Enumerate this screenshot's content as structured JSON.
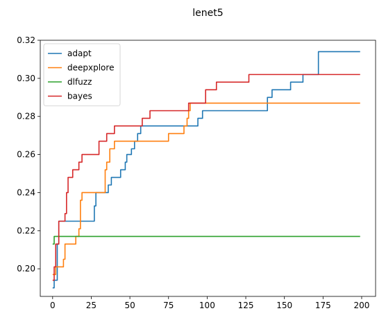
{
  "chart_data": {
    "type": "line",
    "title": "lenet5",
    "xlabel": "",
    "ylabel": "",
    "xlim": [
      -8,
      209
    ],
    "ylim": [
      0.1855,
      0.32
    ],
    "xticks": [
      0,
      25,
      50,
      75,
      100,
      125,
      150,
      175,
      200
    ],
    "yticks": [
      0.2,
      0.22,
      0.24,
      0.26,
      0.28,
      0.3,
      0.32
    ],
    "ytick_labels": [
      "0.20",
      "0.22",
      "0.24",
      "0.26",
      "0.28",
      "0.30",
      "0.32"
    ],
    "grid": false,
    "legend_position": "top-left",
    "series": [
      {
        "name": "adapt",
        "color": "#1f77b4",
        "step": true,
        "points": [
          [
            0,
            0.19
          ],
          [
            1,
            0.194
          ],
          [
            3,
            0.213
          ],
          [
            4,
            0.225
          ],
          [
            27,
            0.233
          ],
          [
            28,
            0.24
          ],
          [
            36,
            0.244
          ],
          [
            38,
            0.248
          ],
          [
            44,
            0.252
          ],
          [
            47,
            0.256
          ],
          [
            48,
            0.26
          ],
          [
            51,
            0.263
          ],
          [
            53,
            0.267
          ],
          [
            55,
            0.271
          ],
          [
            57,
            0.275
          ],
          [
            94,
            0.279
          ],
          [
            97,
            0.283
          ],
          [
            139,
            0.29
          ],
          [
            142,
            0.294
          ],
          [
            154,
            0.298
          ],
          [
            162,
            0.302
          ],
          [
            172,
            0.314
          ],
          [
            199,
            0.314
          ]
        ]
      },
      {
        "name": "deepxplore",
        "color": "#ff7f0e",
        "step": true,
        "points": [
          [
            0,
            0.197
          ],
          [
            2,
            0.201
          ],
          [
            7,
            0.205
          ],
          [
            8,
            0.213
          ],
          [
            15,
            0.217
          ],
          [
            17,
            0.221
          ],
          [
            18,
            0.236
          ],
          [
            19,
            0.24
          ],
          [
            34,
            0.252
          ],
          [
            35,
            0.256
          ],
          [
            37,
            0.263
          ],
          [
            40,
            0.267
          ],
          [
            75,
            0.271
          ],
          [
            85,
            0.275
          ],
          [
            87,
            0.279
          ],
          [
            88,
            0.283
          ],
          [
            89,
            0.287
          ],
          [
            199,
            0.287
          ]
        ]
      },
      {
        "name": "dlfuzz",
        "color": "#2ca02c",
        "step": true,
        "points": [
          [
            0,
            0.213
          ],
          [
            1,
            0.217
          ],
          [
            199,
            0.217
          ]
        ]
      },
      {
        "name": "bayes",
        "color": "#d62728",
        "step": true,
        "points": [
          [
            0,
            0.194
          ],
          [
            1,
            0.201
          ],
          [
            2,
            0.213
          ],
          [
            4,
            0.225
          ],
          [
            8,
            0.229
          ],
          [
            9,
            0.24
          ],
          [
            10,
            0.248
          ],
          [
            13,
            0.252
          ],
          [
            17,
            0.256
          ],
          [
            19,
            0.26
          ],
          [
            30,
            0.267
          ],
          [
            35,
            0.271
          ],
          [
            40,
            0.275
          ],
          [
            58,
            0.279
          ],
          [
            63,
            0.283
          ],
          [
            88,
            0.287
          ],
          [
            99,
            0.294
          ],
          [
            106,
            0.298
          ],
          [
            127,
            0.302
          ],
          [
            199,
            0.302
          ]
        ]
      }
    ]
  }
}
